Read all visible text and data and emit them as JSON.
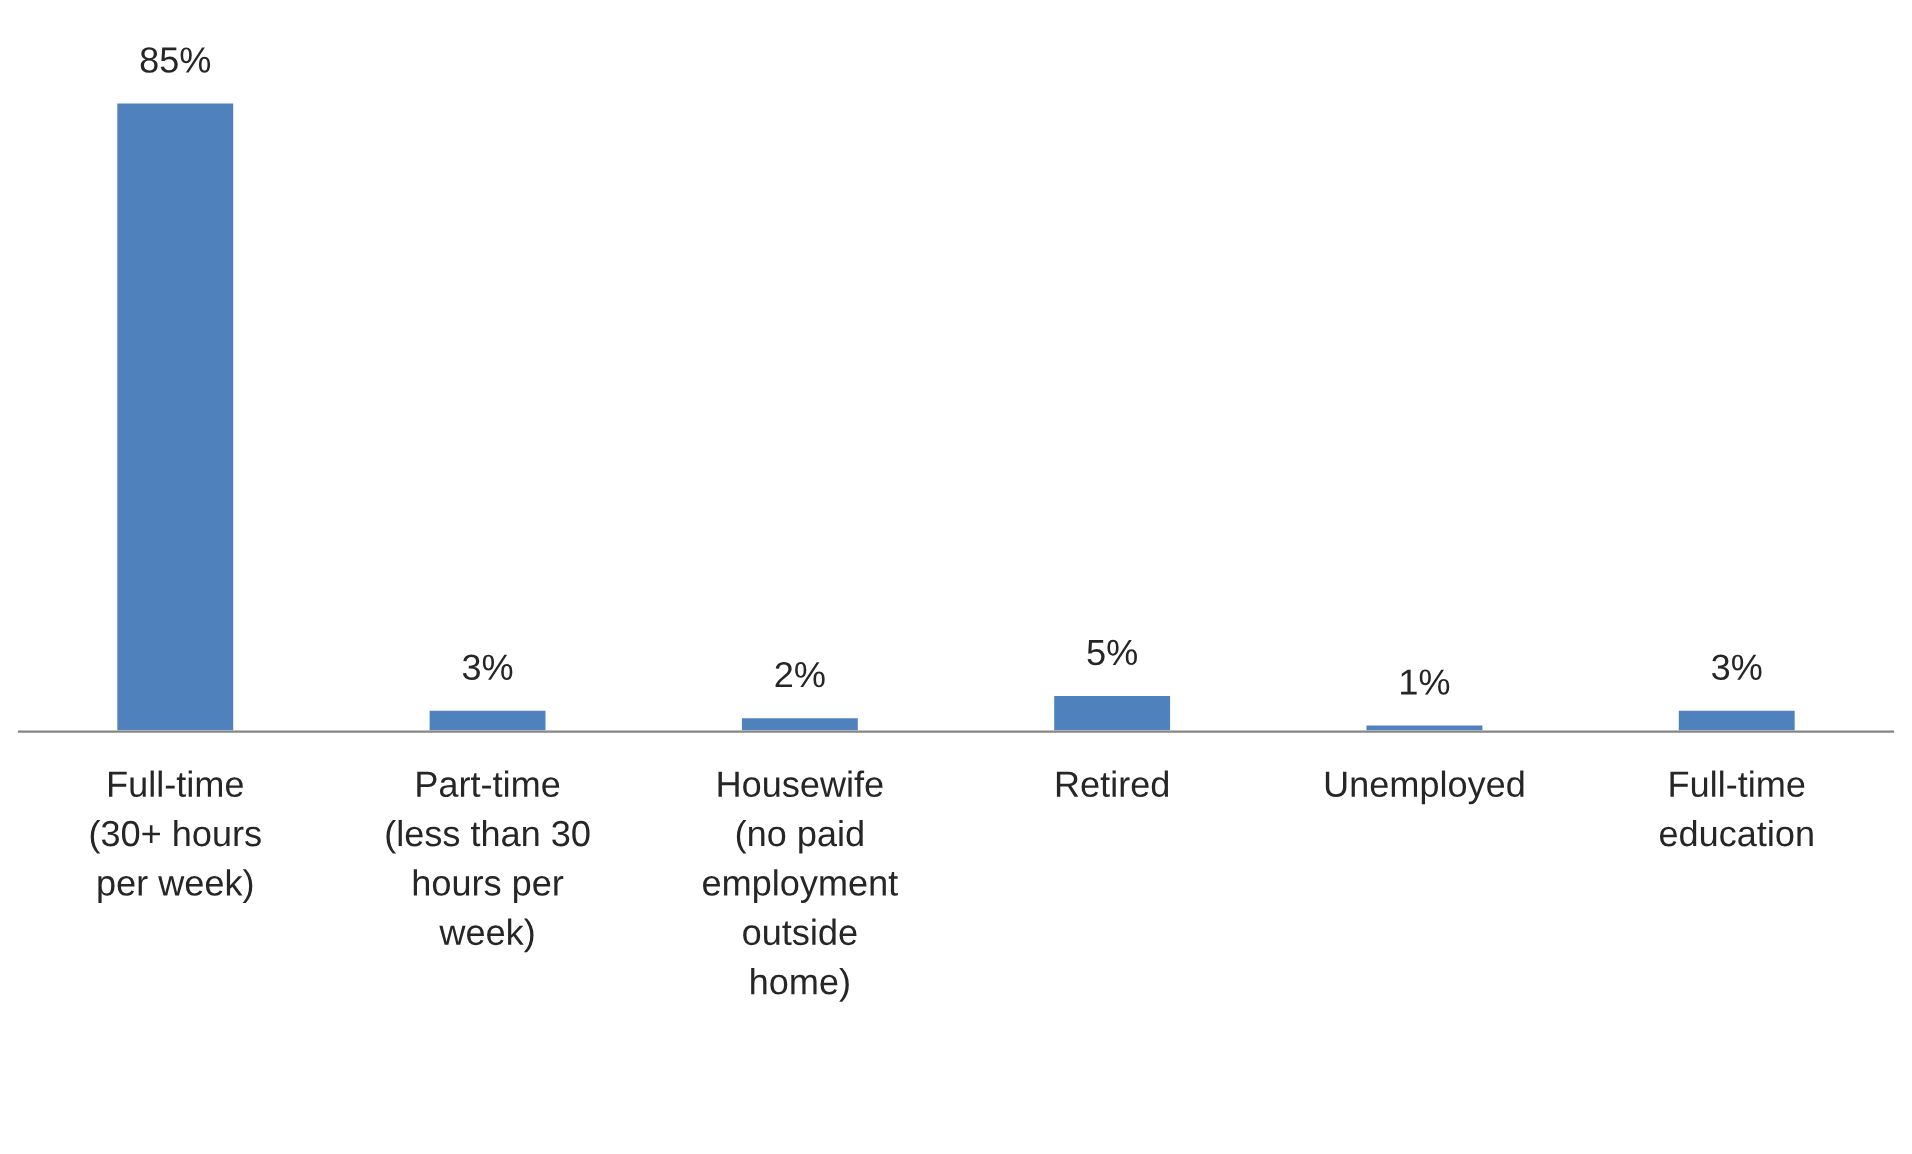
{
  "chart_data": {
    "type": "bar",
    "categories": [
      "Full-time\n(30+ hours\nper week)",
      "Part-time\n(less than 30\nhours per\nweek)",
      "Housewife\n(no paid\nemployment\noutside\nhome)",
      "Retired",
      "Unemployed",
      "Full-time\neducation"
    ],
    "values": [
      85,
      3,
      2,
      5,
      1,
      3
    ],
    "value_labels": [
      "85%",
      "3%",
      "2%",
      "5%",
      "1%",
      "3%"
    ],
    "color": "#4f81bd",
    "grid": false,
    "legend": false
  }
}
